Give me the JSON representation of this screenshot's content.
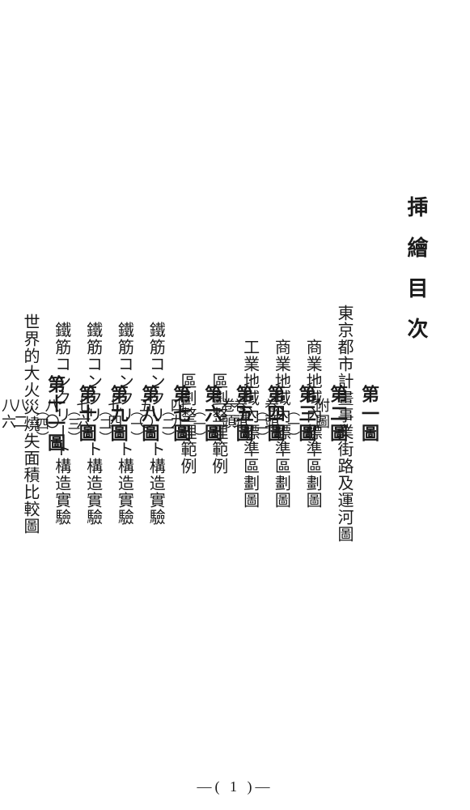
{
  "title": "挿繪目次",
  "entries": [
    {
      "label": "第一圖",
      "title": "東京都市計畫事業街路及運河圖",
      "sub": "",
      "page": "附圖"
    },
    {
      "label": "第二圖",
      "title": "商業地域內標準區劃圖",
      "sub": "（一）",
      "page": "卷頭"
    },
    {
      "label": "第三圖",
      "title": "商業地域內標準區劃圖",
      "sub": "（二）",
      "page": "卷頭"
    },
    {
      "label": "第四圖",
      "title": "工業地域內標準區劃圖",
      "sub": "",
      "page": "卷頭"
    },
    {
      "label": "第五圖",
      "title": "區劃整理範例",
      "sub": "（一）",
      "page": "四九"
    },
    {
      "label": "第六圖",
      "title": "區劃整理範例",
      "sub": "（二）",
      "page": "五〇"
    },
    {
      "label": "第七圖",
      "title": "鐵筋コンクリート構造實驗",
      "sub": "（一）",
      "page": "七四"
    },
    {
      "label": "第八圖",
      "title": "鐵筋コンクリート構造實驗",
      "sub": "（二）",
      "page": "七六"
    },
    {
      "label": "第九圖",
      "title": "鐵筋コンクリート構造實驗",
      "sub": "（三）",
      "page": "八〇"
    },
    {
      "label": "第十圖",
      "title": "鐵筋コンクリート構造實驗",
      "sub": "（四）",
      "page": "八二"
    },
    {
      "label": "第十一圖",
      "title": "世界的大火災燒失面積比較圖",
      "sub": "",
      "page": "八六"
    }
  ],
  "footer": "—( 1 )—"
}
